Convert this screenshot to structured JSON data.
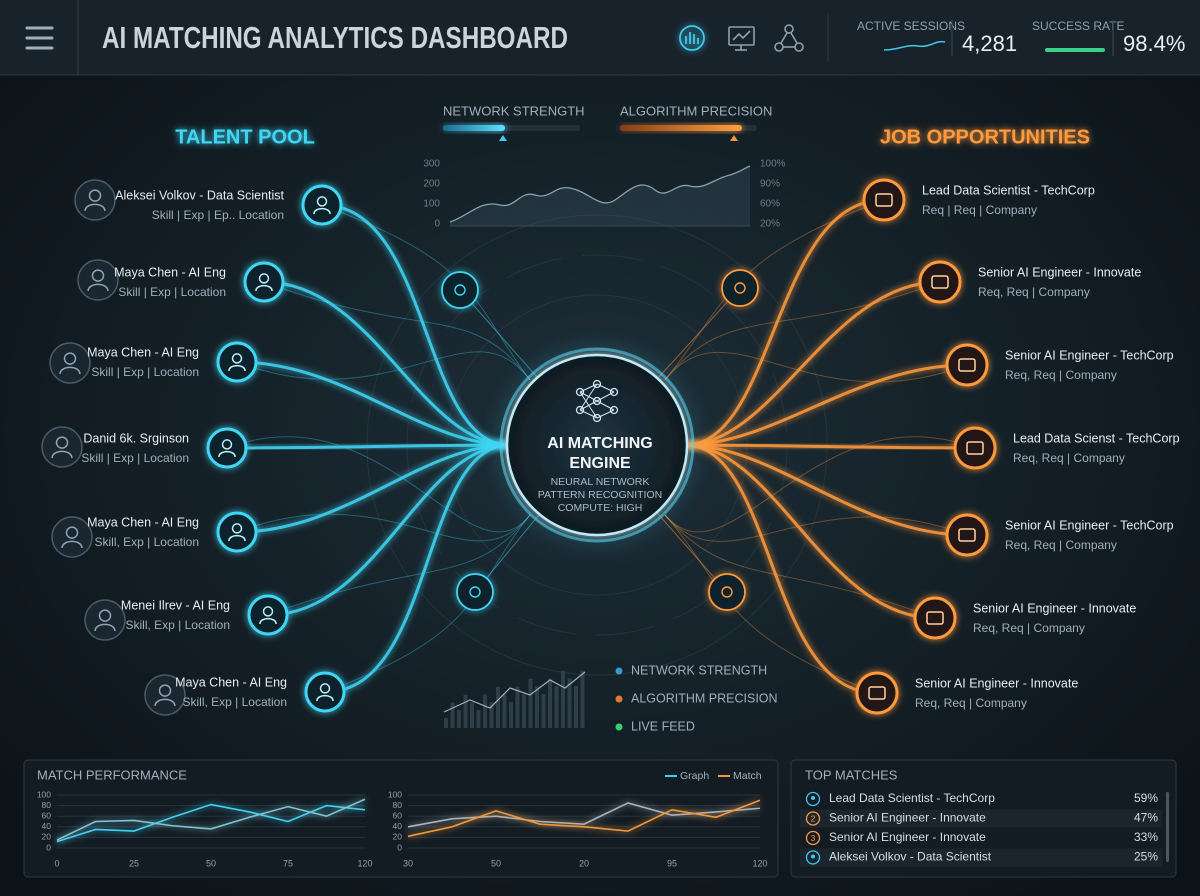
{
  "header": {
    "title": "AI MATCHING ANALYTICS DASHBOARD",
    "stats": [
      {
        "label": "ACTIVE SESSIONS",
        "value": "4,281"
      },
      {
        "label": "SUCCESS RATE",
        "value": "98.4%"
      }
    ]
  },
  "gauges": [
    "NETWORK STRENGTH",
    "ALGORITHM PRECISION"
  ],
  "network_chart": {
    "left_labels": [
      "300",
      "200",
      "100",
      "0"
    ],
    "right_labels": [
      "100%",
      "90%",
      "60%",
      "20%"
    ]
  },
  "talent_pool": {
    "title": "TALENT POOL",
    "items": [
      {
        "name": "Aleksei Volkov - Data Scientist",
        "detail": "Skill | Exp | Ep.. Location"
      },
      {
        "name": "Maya Chen - AI Eng",
        "detail": "Skill | Exp | Location"
      },
      {
        "name": "Maya Chen - AI Eng",
        "detail": "Skill | Exp | Location"
      },
      {
        "name": "Danid 6k. Srginson",
        "detail": "Skill | Exp | Location"
      },
      {
        "name": "Maya Chen - AI Eng",
        "detail": "Skill, Exp | Location"
      },
      {
        "name": "Menei Ilrev - AI Eng",
        "detail": "Skill, Exp | Location"
      },
      {
        "name": "Maya Chen - AI Eng",
        "detail": "Skill, Exp | Location"
      }
    ]
  },
  "job_opportunities": {
    "title": "JOB OPPORTUNITIES",
    "items": [
      {
        "name": "Lead Data Scientist - TechCorp",
        "detail": "Req | Req | Company"
      },
      {
        "name": "Senior AI Engineer - Innovate",
        "detail": "Req, Req | Company"
      },
      {
        "name": "Senior AI Engineer - TechCorp",
        "detail": "Req, Req | Company"
      },
      {
        "name": "Lead Data Scienst - TechCorp",
        "detail": "Req, Req | Company"
      },
      {
        "name": "Senior AI Engineer - TechCorp",
        "detail": "Req, Req | Company"
      },
      {
        "name": "Senior AI Engineer - Innovate",
        "detail": "Req, Req | Company"
      },
      {
        "name": "Senior AI Engineer - Innovate",
        "detail": "Req, Req | Company"
      }
    ]
  },
  "engine": {
    "title": [
      "AI MATCHING",
      "ENGINE"
    ],
    "lines": [
      "NEURAL NETWORK",
      "PATTERN RECOGNITION",
      "COMPUTE: HIGH"
    ]
  },
  "legend": [
    {
      "label": "NETWORK STRENGTH",
      "color": "#3a9ad0"
    },
    {
      "label": "ALGORITHM PRECISION",
      "color": "#e07a30"
    },
    {
      "label": "LIVE FEED",
      "color": "#3ad070"
    }
  ],
  "match_performance": {
    "title": "MATCH PERFORMANCE",
    "legend": [
      {
        "label": "Graph",
        "color": "#3fd0f0"
      },
      {
        "label": "Match",
        "color": "#f0963c"
      }
    ],
    "charts": [
      {
        "ylim": [
          0,
          100
        ],
        "yticks": [
          0,
          20,
          40,
          60,
          80,
          100
        ],
        "xlabels": [
          "0",
          "25",
          "50",
          "75",
          "120"
        ],
        "series": [
          {
            "color": "#3fd0f0",
            "values": [
              12,
              35,
              32,
              58,
              82,
              68,
              50,
              80,
              72
            ]
          },
          {
            "color": "#7fc4d4",
            "values": [
              15,
              50,
              52,
              42,
              36,
              58,
              78,
              60,
              92
            ]
          }
        ]
      },
      {
        "ylim": [
          0,
          100
        ],
        "yticks": [
          0,
          20,
          40,
          60,
          80,
          100
        ],
        "xlabels": [
          "30",
          "50",
          "20",
          "95",
          "120"
        ],
        "series": [
          {
            "color": "#aab4bc",
            "values": [
              40,
              55,
              60,
              50,
              45,
              85,
              62,
              68,
              75
            ]
          },
          {
            "color": "#f0963c",
            "values": [
              22,
              40,
              70,
              45,
              40,
              32,
              72,
              58,
              90
            ]
          }
        ]
      }
    ]
  },
  "top_matches": {
    "title": "TOP MATCHES",
    "rows": [
      {
        "name": "Lead Data Scientist - TechCorp",
        "score": "59%"
      },
      {
        "marker": "2",
        "name": "Senior AI Engineer - Innovate",
        "score": "47%"
      },
      {
        "marker": "3",
        "name": "Senior AI Engineer - Innovate",
        "score": "33%"
      },
      {
        "name": "Aleksei Volkov - Data Scientist",
        "score": "25%"
      }
    ]
  }
}
